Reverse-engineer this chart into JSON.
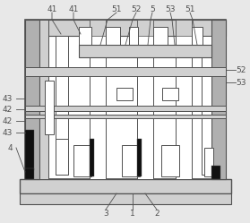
{
  "bg": "#e8e8e8",
  "lc": "#505050",
  "wh": "#ffffff",
  "dk": "#101010",
  "gr": "#b0b0b0",
  "lgr": "#d0d0d0"
}
